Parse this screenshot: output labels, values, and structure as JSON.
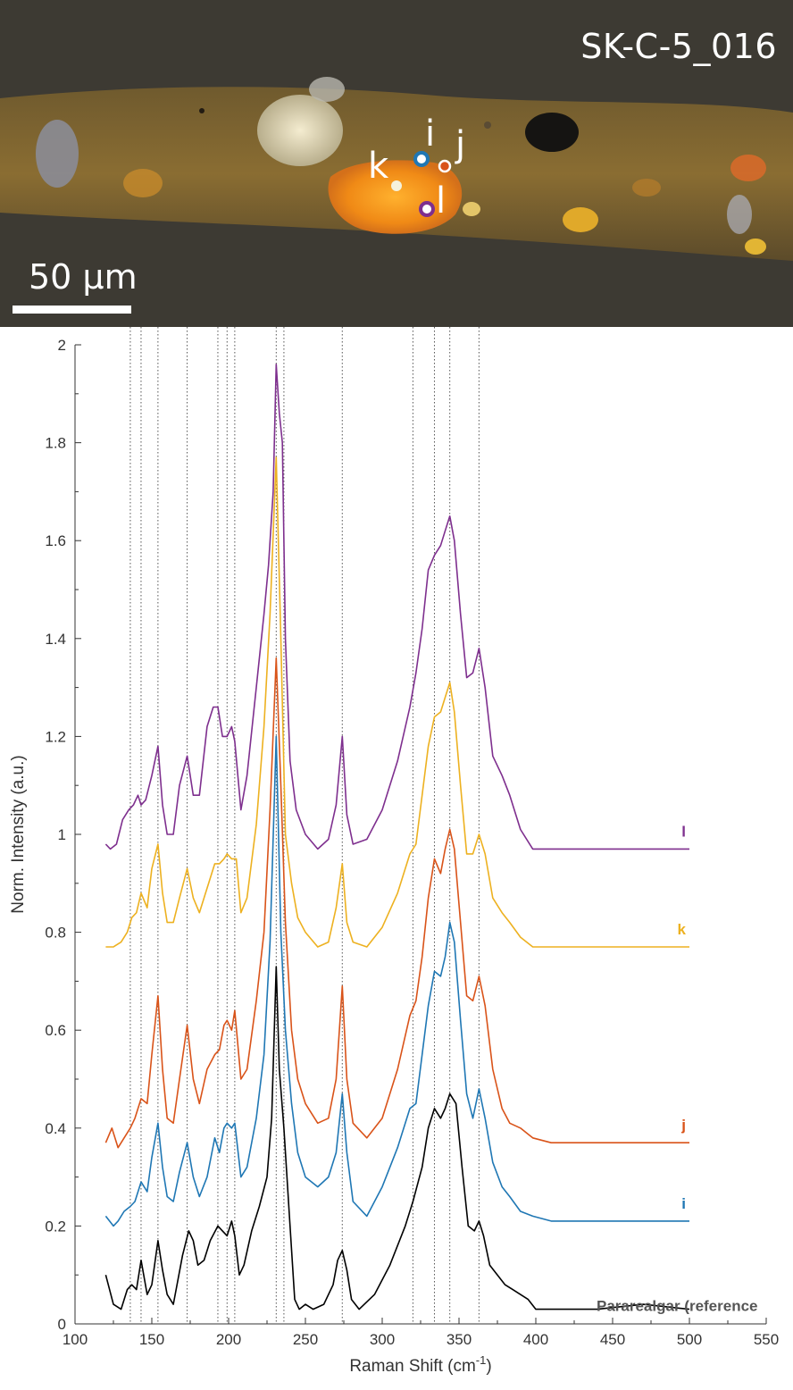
{
  "photo": {
    "title": "SK-C-5_016",
    "scale_label": "50 μm",
    "spots": [
      {
        "label": "i",
        "color": "#1f77b4"
      },
      {
        "label": "j",
        "color": "#d95319"
      },
      {
        "label": "k",
        "color": "#f2d24a"
      },
      {
        "label": "l",
        "color": "#7e2f8e"
      }
    ]
  },
  "chart_data": {
    "type": "line",
    "xlabel": "Raman Shift (cm",
    "xlabel_sup": "-1",
    "xlabel_close": ")",
    "ylabel": "Norm. Intensity (a.u.)",
    "xlim": [
      100,
      550
    ],
    "ylim": [
      0,
      2
    ],
    "xticks": [
      100,
      150,
      200,
      250,
      300,
      350,
      400,
      450,
      500,
      550
    ],
    "yticks": [
      0,
      0.2,
      0.4,
      0.6,
      0.8,
      1,
      1.2,
      1.4,
      1.6,
      1.8,
      2
    ],
    "ytick_labels": [
      "0",
      "0.2",
      "0.4",
      "0.6",
      "0.8",
      "1",
      "1.2",
      "1.4",
      "1.6",
      "1.8",
      "2"
    ],
    "grid": false,
    "reference_lines": [
      136,
      143,
      154,
      173,
      193,
      199,
      204,
      231,
      236,
      274,
      320,
      334,
      344,
      363
    ],
    "series": [
      {
        "name": "Pararealgar (reference",
        "color": "#000000",
        "x": [
          120,
          125,
          130,
          134,
          137,
          140,
          143,
          147,
          150,
          154,
          157,
          160,
          164,
          170,
          174,
          177,
          180,
          184,
          188,
          193,
          196,
          199,
          202,
          204,
          207,
          210,
          215,
          220,
          225,
          228,
          231,
          233,
          236,
          240,
          243,
          246,
          250,
          255,
          262,
          268,
          271,
          274,
          277,
          280,
          285,
          295,
          305,
          315,
          320,
          326,
          330,
          334,
          338,
          341,
          344,
          348,
          352,
          356,
          360,
          363,
          366,
          370,
          375,
          380,
          385,
          390,
          395,
          400,
          410,
          440,
          470,
          500
        ],
        "y": [
          0.1,
          0.04,
          0.03,
          0.07,
          0.08,
          0.07,
          0.13,
          0.06,
          0.08,
          0.17,
          0.11,
          0.06,
          0.04,
          0.14,
          0.19,
          0.17,
          0.12,
          0.13,
          0.17,
          0.2,
          0.19,
          0.18,
          0.21,
          0.18,
          0.1,
          0.12,
          0.19,
          0.24,
          0.3,
          0.42,
          0.73,
          0.52,
          0.4,
          0.2,
          0.05,
          0.03,
          0.04,
          0.03,
          0.04,
          0.08,
          0.13,
          0.15,
          0.11,
          0.05,
          0.03,
          0.06,
          0.12,
          0.2,
          0.25,
          0.32,
          0.4,
          0.44,
          0.42,
          0.44,
          0.47,
          0.45,
          0.32,
          0.2,
          0.19,
          0.21,
          0.18,
          0.12,
          0.1,
          0.08,
          0.07,
          0.06,
          0.05,
          0.03,
          0.03,
          0.03,
          0.04,
          0.03
        ]
      },
      {
        "name": "i",
        "color": "#1f77b4",
        "x": [
          120,
          125,
          128,
          132,
          136,
          139,
          143,
          147,
          150,
          154,
          157,
          160,
          164,
          168,
          173,
          177,
          181,
          186,
          191,
          194,
          197,
          199,
          202,
          204,
          208,
          212,
          218,
          223,
          227,
          231,
          234,
          237,
          241,
          245,
          250,
          258,
          265,
          270,
          274,
          277,
          281,
          290,
          300,
          310,
          318,
          322,
          326,
          330,
          334,
          338,
          341,
          344,
          347,
          351,
          355,
          359,
          363,
          367,
          372,
          378,
          383,
          390,
          398,
          410,
          440,
          470,
          500
        ],
        "y": [
          0.22,
          0.2,
          0.21,
          0.23,
          0.24,
          0.25,
          0.29,
          0.27,
          0.34,
          0.41,
          0.32,
          0.26,
          0.25,
          0.31,
          0.37,
          0.3,
          0.26,
          0.3,
          0.38,
          0.35,
          0.4,
          0.41,
          0.4,
          0.41,
          0.3,
          0.32,
          0.42,
          0.55,
          0.78,
          1.2,
          0.8,
          0.6,
          0.45,
          0.35,
          0.3,
          0.28,
          0.3,
          0.35,
          0.47,
          0.35,
          0.25,
          0.22,
          0.28,
          0.36,
          0.44,
          0.45,
          0.55,
          0.65,
          0.72,
          0.71,
          0.75,
          0.82,
          0.78,
          0.62,
          0.47,
          0.42,
          0.48,
          0.42,
          0.33,
          0.28,
          0.26,
          0.23,
          0.22,
          0.21,
          0.21,
          0.21,
          0.21
        ]
      },
      {
        "name": "j",
        "color": "#d95319",
        "x": [
          120,
          124,
          128,
          132,
          136,
          139,
          143,
          147,
          150,
          154,
          157,
          160,
          164,
          168,
          173,
          177,
          181,
          186,
          191,
          194,
          197,
          199,
          202,
          204,
          208,
          212,
          218,
          223,
          227,
          231,
          234,
          237,
          241,
          245,
          250,
          258,
          265,
          270,
          274,
          277,
          281,
          290,
          300,
          310,
          318,
          322,
          326,
          330,
          334,
          338,
          341,
          344,
          347,
          351,
          355,
          359,
          363,
          367,
          372,
          378,
          383,
          390,
          398,
          410,
          440,
          470,
          500
        ],
        "y": [
          0.37,
          0.4,
          0.36,
          0.38,
          0.4,
          0.42,
          0.46,
          0.45,
          0.55,
          0.67,
          0.52,
          0.42,
          0.41,
          0.5,
          0.61,
          0.5,
          0.45,
          0.52,
          0.55,
          0.56,
          0.61,
          0.62,
          0.6,
          0.64,
          0.5,
          0.52,
          0.66,
          0.8,
          1.05,
          1.36,
          1.1,
          0.82,
          0.6,
          0.5,
          0.45,
          0.41,
          0.42,
          0.5,
          0.69,
          0.5,
          0.41,
          0.38,
          0.42,
          0.52,
          0.63,
          0.66,
          0.75,
          0.87,
          0.95,
          0.92,
          0.97,
          1.01,
          0.97,
          0.82,
          0.67,
          0.66,
          0.71,
          0.65,
          0.52,
          0.44,
          0.41,
          0.4,
          0.38,
          0.37,
          0.37,
          0.37,
          0.37
        ]
      },
      {
        "name": "k",
        "color": "#edb120",
        "x": [
          120,
          125,
          130,
          134,
          137,
          140,
          143,
          147,
          150,
          154,
          157,
          160,
          164,
          168,
          173,
          177,
          181,
          186,
          191,
          194,
          197,
          199,
          202,
          205,
          208,
          212,
          218,
          223,
          227,
          231,
          234,
          237,
          241,
          245,
          250,
          258,
          265,
          270,
          274,
          277,
          281,
          290,
          300,
          310,
          318,
          322,
          326,
          330,
          334,
          338,
          341,
          344,
          347,
          351,
          355,
          359,
          363,
          367,
          372,
          378,
          383,
          390,
          398,
          410,
          440,
          470,
          500
        ],
        "y": [
          0.77,
          0.77,
          0.78,
          0.8,
          0.83,
          0.84,
          0.88,
          0.85,
          0.93,
          0.98,
          0.88,
          0.82,
          0.82,
          0.87,
          0.93,
          0.87,
          0.84,
          0.89,
          0.94,
          0.94,
          0.95,
          0.96,
          0.95,
          0.95,
          0.84,
          0.87,
          1.02,
          1.22,
          1.45,
          1.77,
          1.4,
          1.0,
          0.9,
          0.83,
          0.8,
          0.77,
          0.78,
          0.85,
          0.94,
          0.82,
          0.78,
          0.77,
          0.81,
          0.88,
          0.96,
          0.98,
          1.08,
          1.18,
          1.24,
          1.25,
          1.28,
          1.31,
          1.25,
          1.1,
          0.96,
          0.96,
          1.0,
          0.96,
          0.87,
          0.84,
          0.82,
          0.79,
          0.77,
          0.77,
          0.77,
          0.77,
          0.77
        ]
      },
      {
        "name": "l",
        "color": "#7e2f8e",
        "x": [
          120,
          123,
          127,
          131,
          135,
          138,
          141,
          143,
          146,
          150,
          154,
          157,
          160,
          164,
          168,
          173,
          177,
          181,
          186,
          190,
          193,
          196,
          199,
          202,
          204,
          208,
          212,
          218,
          223,
          226,
          229,
          231,
          233,
          235,
          237,
          240,
          244,
          250,
          258,
          265,
          270,
          274,
          277,
          281,
          290,
          300,
          310,
          318,
          322,
          326,
          330,
          334,
          338,
          341,
          344,
          347,
          351,
          355,
          359,
          363,
          367,
          372,
          378,
          383,
          390,
          398,
          410,
          440,
          470,
          500
        ],
        "y": [
          0.98,
          0.97,
          0.98,
          1.03,
          1.05,
          1.06,
          1.08,
          1.06,
          1.07,
          1.12,
          1.18,
          1.06,
          1.0,
          1.0,
          1.1,
          1.16,
          1.08,
          1.08,
          1.22,
          1.26,
          1.26,
          1.2,
          1.2,
          1.22,
          1.19,
          1.05,
          1.12,
          1.3,
          1.45,
          1.55,
          1.7,
          1.96,
          1.86,
          1.8,
          1.4,
          1.15,
          1.05,
          1.0,
          0.97,
          0.99,
          1.06,
          1.2,
          1.04,
          0.98,
          0.99,
          1.05,
          1.15,
          1.26,
          1.33,
          1.42,
          1.54,
          1.57,
          1.59,
          1.62,
          1.65,
          1.6,
          1.45,
          1.32,
          1.33,
          1.38,
          1.3,
          1.16,
          1.12,
          1.08,
          1.01,
          0.97,
          0.97,
          0.97,
          0.97,
          0.97
        ]
      }
    ]
  }
}
